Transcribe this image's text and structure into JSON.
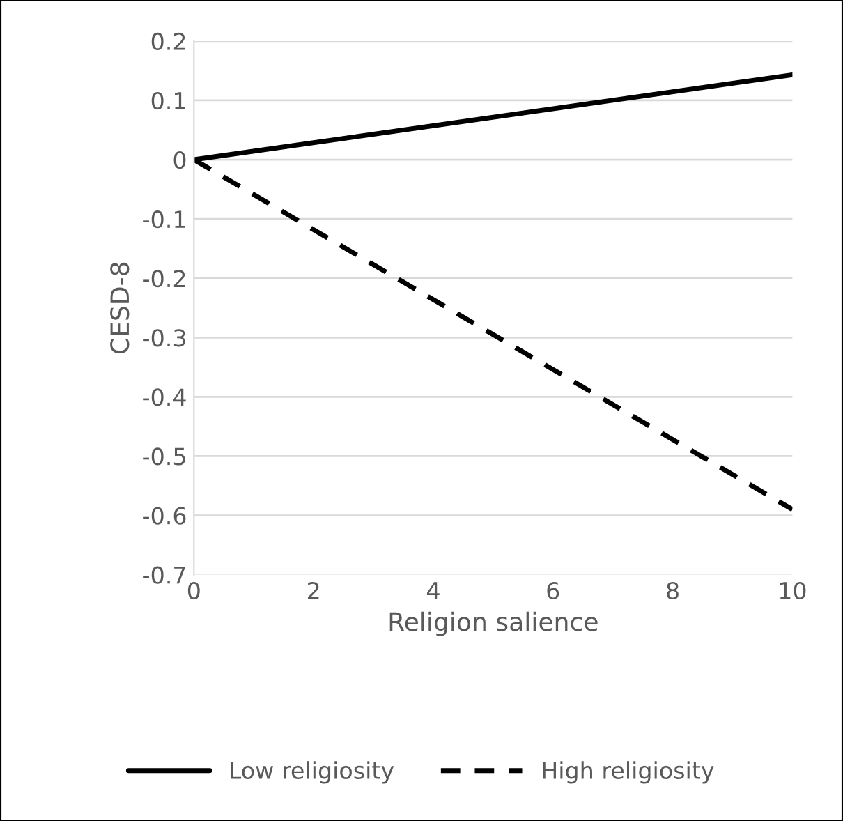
{
  "chart_data": {
    "type": "line",
    "xlabel": "Religion salience",
    "ylabel": "CESD-8",
    "x": [
      0,
      10
    ],
    "series": [
      {
        "name": "Low religiosity",
        "color": "#000000",
        "values": [
          0,
          0.143
        ],
        "line_style": "solid"
      },
      {
        "name": "High religiosity",
        "color": "#000000",
        "values": [
          0,
          -0.59
        ],
        "line_style": "dashed"
      }
    ],
    "xlim": [
      0,
      10
    ],
    "xticks": [
      0,
      2,
      4,
      6,
      8,
      10
    ],
    "ylim": [
      -0.7,
      0.2
    ],
    "yticks": [
      -0.7,
      -0.6,
      -0.5,
      -0.4,
      -0.3,
      -0.2,
      -0.1,
      0,
      0.1,
      0.2
    ],
    "grid": "y",
    "legend": "bottom",
    "marker": "none"
  }
}
